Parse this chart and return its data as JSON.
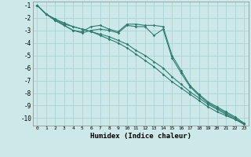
{
  "title": "",
  "xlabel": "Humidex (Indice chaleur)",
  "bg_color": "#cce8e8",
  "grid_color": "#aad4d4",
  "line_color": "#2d7d6e",
  "xlim": [
    -0.5,
    23.5
  ],
  "ylim": [
    -10.6,
    -0.7
  ],
  "yticks": [
    -1,
    -2,
    -3,
    -4,
    -5,
    -6,
    -7,
    -8,
    -9,
    -10
  ],
  "xticks": [
    0,
    1,
    2,
    3,
    4,
    5,
    6,
    7,
    8,
    9,
    10,
    11,
    12,
    13,
    14,
    15,
    16,
    17,
    18,
    19,
    20,
    21,
    22,
    23
  ],
  "series": [
    {
      "x": [
        0,
        1,
        2,
        3,
        4,
        5,
        6,
        7,
        8,
        9,
        10,
        11,
        12,
        13,
        14,
        15,
        16,
        17,
        18,
        19,
        20,
        21,
        22,
        23
      ],
      "y": [
        -1.0,
        -1.7,
        -2.1,
        -2.4,
        -2.7,
        -2.9,
        -3.1,
        -3.4,
        -3.7,
        -4.0,
        -4.4,
        -4.9,
        -5.4,
        -5.9,
        -6.5,
        -7.1,
        -7.6,
        -8.1,
        -8.6,
        -9.1,
        -9.5,
        -9.8,
        -10.1,
        -10.4
      ]
    },
    {
      "x": [
        0,
        1,
        2,
        3,
        4,
        5,
        6,
        7,
        8,
        9,
        10,
        11,
        12,
        13,
        14,
        15,
        16,
        17,
        18,
        19,
        20,
        21,
        22,
        23
      ],
      "y": [
        -1.0,
        -1.7,
        -2.1,
        -2.5,
        -2.7,
        -2.9,
        -3.1,
        -3.3,
        -3.5,
        -3.8,
        -4.1,
        -4.6,
        -5.0,
        -5.5,
        -6.0,
        -6.7,
        -7.3,
        -7.9,
        -8.4,
        -8.9,
        -9.3,
        -9.7,
        -10.1,
        -10.5
      ]
    },
    {
      "x": [
        0,
        1,
        2,
        3,
        4,
        5,
        6,
        7,
        8,
        9,
        10,
        11,
        12,
        13,
        14,
        15,
        16,
        17,
        18,
        19,
        20,
        21,
        22,
        23
      ],
      "y": [
        -1.0,
        -1.7,
        -2.2,
        -2.6,
        -3.0,
        -3.1,
        -2.7,
        -2.6,
        -2.9,
        -3.1,
        -2.5,
        -2.5,
        -2.6,
        -2.6,
        -2.7,
        -5.0,
        -6.2,
        -7.4,
        -8.1,
        -8.7,
        -9.1,
        -9.5,
        -9.9,
        -10.4
      ]
    },
    {
      "x": [
        0,
        1,
        2,
        3,
        4,
        5,
        6,
        7,
        8,
        9,
        10,
        11,
        12,
        13,
        14,
        15,
        16,
        17,
        18,
        19,
        20,
        21,
        22,
        23
      ],
      "y": [
        -1.0,
        -1.7,
        -2.2,
        -2.6,
        -3.0,
        -3.2,
        -3.0,
        -2.9,
        -3.0,
        -3.2,
        -2.6,
        -2.7,
        -2.7,
        -3.4,
        -2.9,
        -5.2,
        -6.4,
        -7.5,
        -8.2,
        -8.8,
        -9.2,
        -9.6,
        -10.0,
        -10.5
      ]
    }
  ]
}
